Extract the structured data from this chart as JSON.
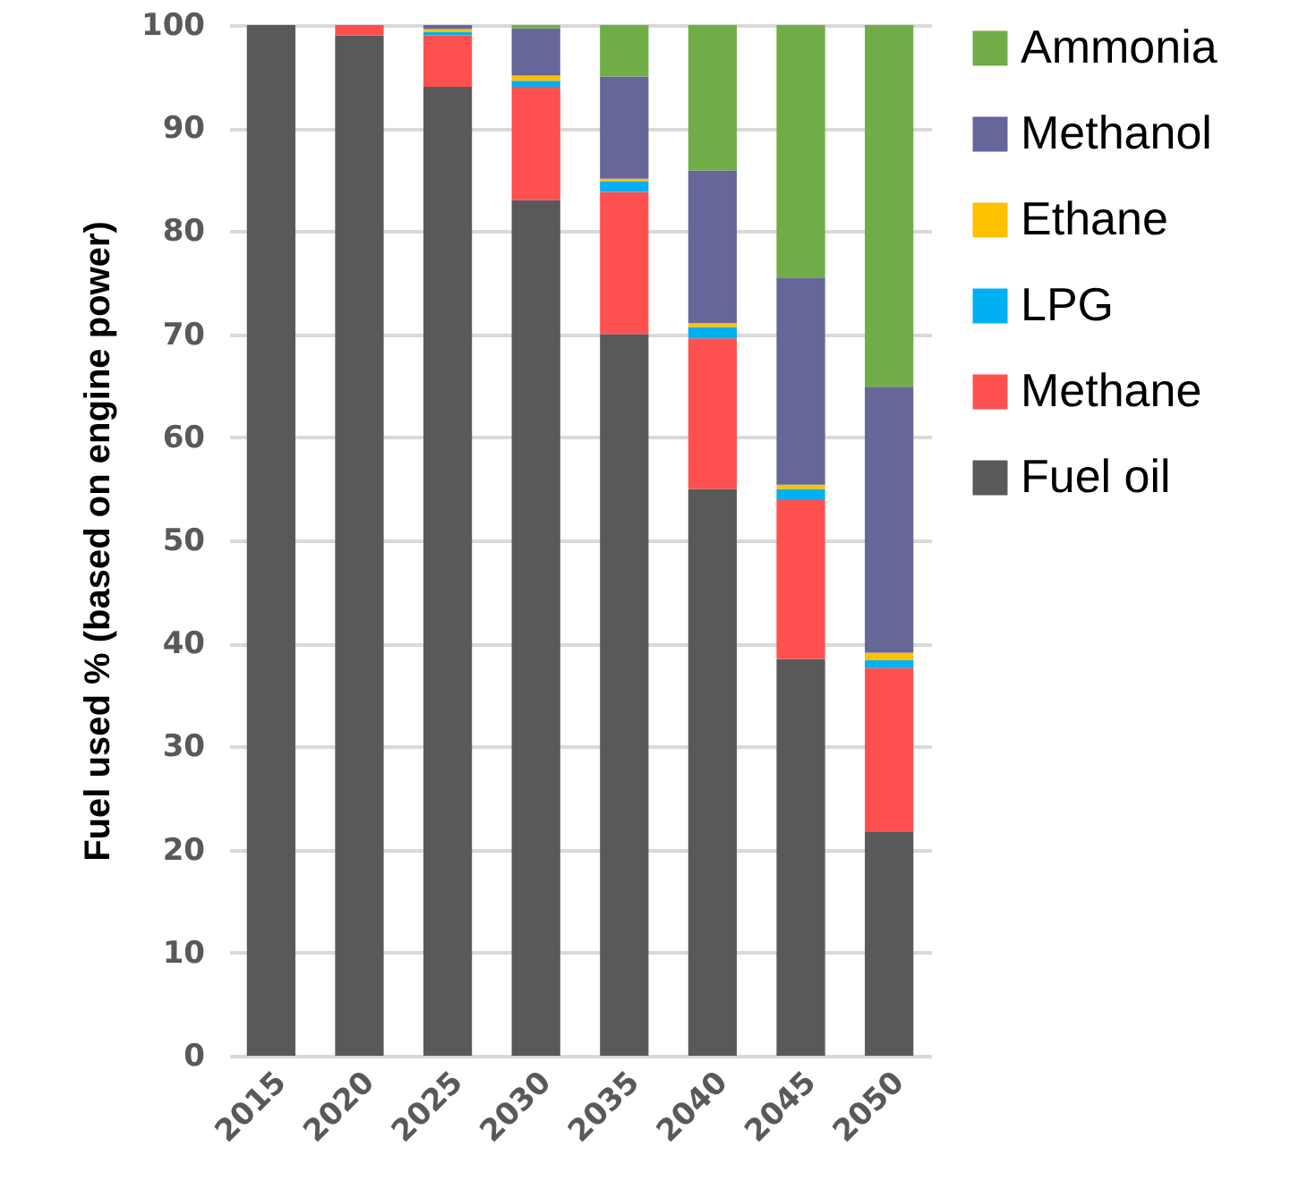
{
  "chart_data": {
    "type": "bar",
    "stacked": true,
    "ylabel": "Fuel used % (based on engine power)",
    "categories": [
      "2015",
      "2020",
      "2025",
      "2030",
      "2035",
      "2040",
      "2045",
      "2050"
    ],
    "series": [
      {
        "name": "Fuel oil",
        "color": "#595959",
        "values": [
          100,
          99,
          94,
          83,
          70,
          55,
          38.5,
          21.7
        ]
      },
      {
        "name": "Methane",
        "color": "#ff5050",
        "values": [
          null,
          1,
          5,
          11,
          13.8,
          14.6,
          15.4,
          15.9
        ]
      },
      {
        "name": "LPG",
        "color": "#00b0f0",
        "values": [
          null,
          null,
          0.3,
          0.6,
          1,
          1.1,
          1.1,
          0.8
        ]
      },
      {
        "name": "Ethane",
        "color": "#ffc000",
        "values": [
          null,
          null,
          0.3,
          0.5,
          0.3,
          0.4,
          0.4,
          0.7
        ]
      },
      {
        "name": "Methanol",
        "color": "#666699",
        "values": [
          null,
          null,
          0.4,
          4.6,
          9.9,
          14.8,
          20.1,
          25.8
        ]
      },
      {
        "name": "Ammonia",
        "color": "#70ad47",
        "values": [
          null,
          null,
          null,
          0.3,
          5,
          14.1,
          24.5,
          35.1
        ]
      }
    ],
    "ylim": [
      0,
      100
    ],
    "yticks": [
      0,
      10,
      20,
      30,
      40,
      50,
      60,
      70,
      80,
      90,
      100
    ],
    "grid": "y",
    "legend": "right"
  }
}
